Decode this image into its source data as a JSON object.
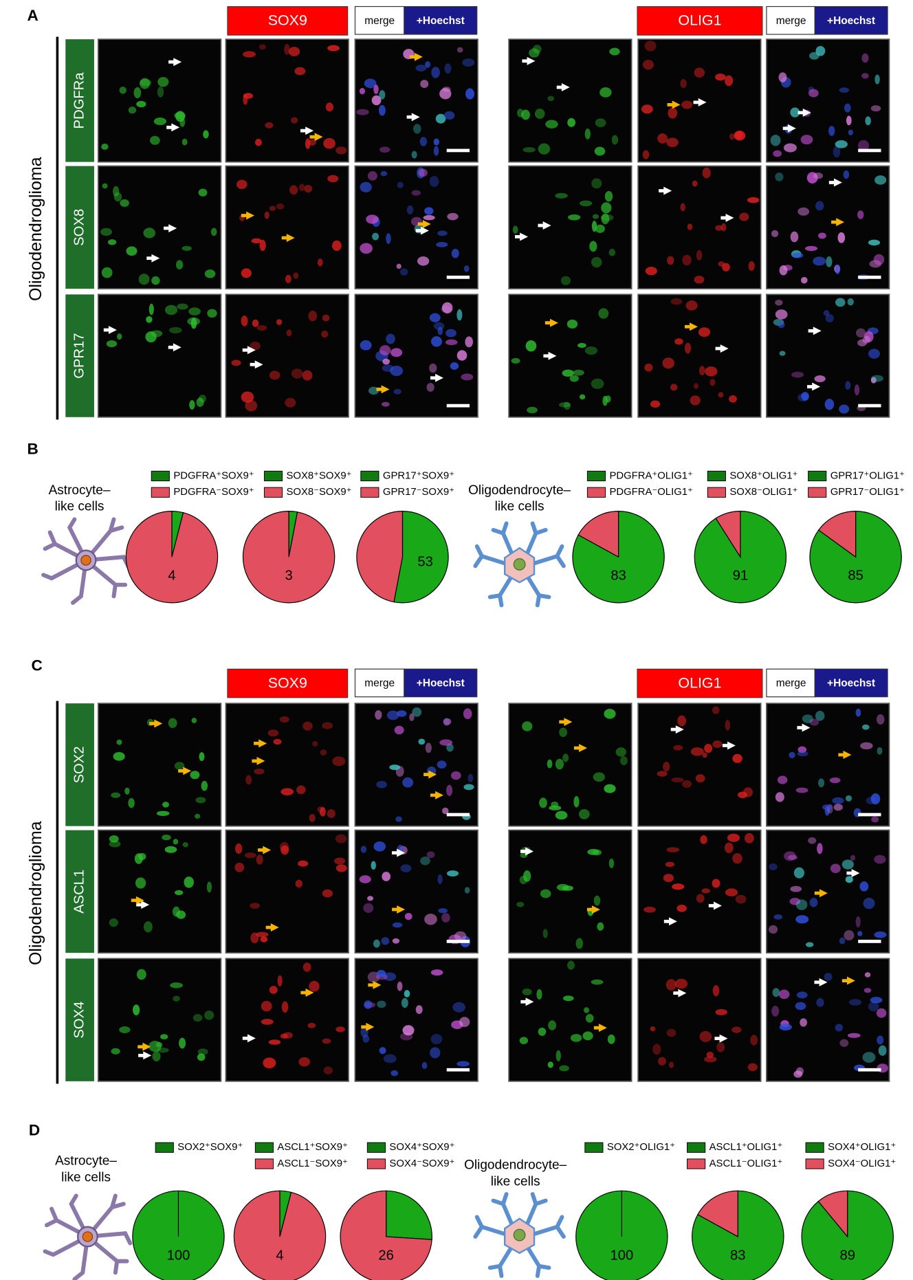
{
  "figure": {
    "image_panels": [
      {
        "letter": "A",
        "side_label": "Oligodendroglioma",
        "channels": [
          "SOX9",
          "OLIG1"
        ],
        "merge": "merge",
        "hoechst": "+Hoechst",
        "rows": [
          "PDGFRa",
          "SOX8",
          "GPR17"
        ]
      },
      {
        "letter": "C",
        "side_label": "Oligodendroglioma",
        "channels": [
          "SOX9",
          "OLIG1"
        ],
        "merge": "merge",
        "hoechst": "+Hoechst",
        "rows": [
          "SOX2",
          "ASCL1",
          "SOX4"
        ]
      }
    ],
    "pie_panels": [
      {
        "letter": "B",
        "groups": [
          [
            "Astrocyte–",
            "like cells"
          ],
          [
            "Oligodendrocyte–",
            "like cells"
          ]
        ]
      },
      {
        "letter": "D",
        "groups": [
          [
            "Astrocyte–",
            "like cells"
          ],
          [
            "Oligodendrocyte–",
            "like cells"
          ]
        ]
      }
    ]
  },
  "chart_data": [
    {
      "type": "pie",
      "categories": [
        "PDGFRA⁺SOX9⁺",
        "PDGFRA⁻SOX9⁺"
      ],
      "values": [
        4,
        96
      ],
      "colors": [
        "#18a818",
        "#e2505f"
      ]
    },
    {
      "type": "pie",
      "categories": [
        "SOX8⁺SOX9⁺",
        "SOX8⁻SOX9⁺"
      ],
      "values": [
        3,
        97
      ],
      "colors": [
        "#18a818",
        "#e2505f"
      ]
    },
    {
      "type": "pie",
      "categories": [
        "GPR17⁺SOX9⁺",
        "GPR17⁻SOX9⁺"
      ],
      "values": [
        53,
        47
      ],
      "colors": [
        "#18a818",
        "#e2505f"
      ]
    },
    {
      "type": "pie",
      "categories": [
        "PDGFRA⁺OLIG1⁺",
        "PDGFRA⁻OLIG1⁺"
      ],
      "values": [
        83,
        17
      ],
      "colors": [
        "#18a818",
        "#e2505f"
      ]
    },
    {
      "type": "pie",
      "categories": [
        "SOX8⁺OLIG1⁺",
        "SOX8⁻OLIG1⁺"
      ],
      "values": [
        91,
        9
      ],
      "colors": [
        "#18a818",
        "#e2505f"
      ]
    },
    {
      "type": "pie",
      "categories": [
        "GPR17⁺OLIG1⁺",
        "GPR17⁻OLIG1⁺"
      ],
      "values": [
        85,
        15
      ],
      "colors": [
        "#18a818",
        "#e2505f"
      ]
    },
    {
      "type": "pie",
      "categories": [
        "SOX2⁺SOX9⁺"
      ],
      "values": [
        100
      ],
      "colors": [
        "#18a818"
      ]
    },
    {
      "type": "pie",
      "categories": [
        "ASCL1⁺SOX9⁺",
        "ASCL1⁻SOX9⁺"
      ],
      "values": [
        4,
        96
      ],
      "colors": [
        "#18a818",
        "#e2505f"
      ]
    },
    {
      "type": "pie",
      "categories": [
        "SOX4⁺SOX9⁺",
        "SOX4⁻SOX9⁺"
      ],
      "values": [
        26,
        74
      ],
      "colors": [
        "#18a818",
        "#e2505f"
      ]
    },
    {
      "type": "pie",
      "categories": [
        "SOX2⁺OLIG1⁺"
      ],
      "values": [
        100
      ],
      "colors": [
        "#18a818"
      ]
    },
    {
      "type": "pie",
      "categories": [
        "ASCL1⁺OLIG1⁺",
        "ASCL1⁻OLIG1⁺"
      ],
      "values": [
        83,
        17
      ],
      "colors": [
        "#18a818",
        "#e2505f"
      ]
    },
    {
      "type": "pie",
      "categories": [
        "SOX4⁺OLIG1⁺",
        "SOX4⁻OLIG1⁺"
      ],
      "values": [
        89,
        11
      ],
      "colors": [
        "#18a818",
        "#e2505f"
      ]
    }
  ]
}
